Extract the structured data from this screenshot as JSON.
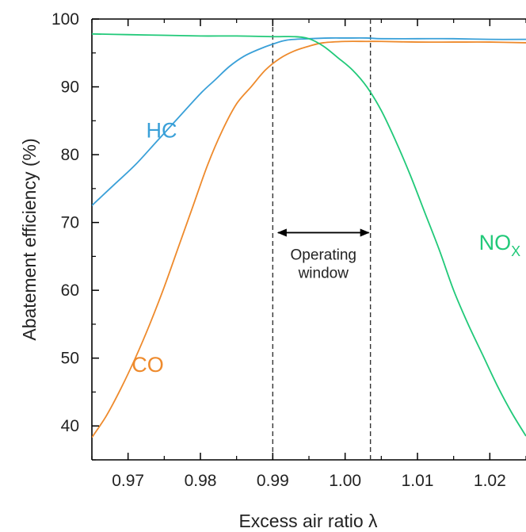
{
  "chart_data": {
    "type": "line",
    "title": "",
    "xlabel": "Excess air ratio λ",
    "ylabel": "Abatement efficiency (%)",
    "xlim": [
      0.965,
      1.025
    ],
    "ylim": [
      35,
      100
    ],
    "x_ticks": [
      0.97,
      0.98,
      0.99,
      1.0,
      1.01,
      1.02
    ],
    "x_tick_labels": [
      "0.97",
      "0.98",
      "0.99",
      "1.00",
      "1.01",
      "1.02"
    ],
    "y_ticks": [
      40,
      50,
      60,
      70,
      80,
      90,
      100
    ],
    "y_tick_labels": [
      "40",
      "50",
      "60",
      "70",
      "80",
      "90",
      "100"
    ],
    "grid": false,
    "series": [
      {
        "name": "HC",
        "color": "#3AA0D8",
        "label_position": {
          "x": 0.9725,
          "y": 82.5
        },
        "x": [
          0.965,
          0.968,
          0.971,
          0.974,
          0.977,
          0.98,
          0.982,
          0.984,
          0.986,
          0.988,
          0.99,
          0.992,
          0.995,
          0.998,
          1.0,
          1.003,
          1.005,
          1.01,
          1.015,
          1.02,
          1.025
        ],
        "y": [
          72.5,
          75.5,
          78.5,
          82.0,
          85.5,
          89.0,
          91.0,
          93.0,
          94.5,
          95.5,
          96.3,
          96.9,
          97.1,
          97.2,
          97.2,
          97.2,
          97.1,
          97.1,
          97.1,
          97.0,
          97.0
        ]
      },
      {
        "name": "CO",
        "color": "#EE8A2C",
        "label_position": {
          "x": 0.9705,
          "y": 48.0
        },
        "x": [
          0.965,
          0.967,
          0.969,
          0.971,
          0.973,
          0.975,
          0.977,
          0.979,
          0.981,
          0.983,
          0.985,
          0.987,
          0.989,
          0.991,
          0.993,
          0.995,
          0.997,
          1.0,
          1.003,
          1.005,
          1.01,
          1.015,
          1.02,
          1.025
        ],
        "y": [
          38.3,
          41.5,
          45.5,
          50.0,
          55.0,
          60.5,
          66.5,
          72.5,
          78.5,
          83.5,
          87.5,
          90.0,
          92.5,
          94.2,
          95.3,
          96.0,
          96.5,
          96.7,
          96.7,
          96.7,
          96.6,
          96.6,
          96.6,
          96.5
        ]
      },
      {
        "name": "NO",
        "name_subscript": "X",
        "color": "#21C979",
        "label_position": {
          "x": 1.0185,
          "y": 66.0
        },
        "x": [
          0.965,
          0.97,
          0.975,
          0.98,
          0.985,
          0.99,
          0.993,
          0.995,
          0.997,
          0.999,
          1.001,
          1.003,
          1.005,
          1.007,
          1.009,
          1.011,
          1.013,
          1.015,
          1.017,
          1.019,
          1.021,
          1.023,
          1.025
        ],
        "y": [
          97.8,
          97.7,
          97.6,
          97.5,
          97.5,
          97.4,
          97.4,
          97.1,
          96.0,
          94.3,
          92.5,
          90.0,
          86.5,
          82.0,
          77.0,
          71.5,
          66.0,
          60.0,
          55.0,
          50.5,
          46.0,
          42.0,
          38.5
        ]
      }
    ],
    "vertical_lines": [
      {
        "x": 0.99,
        "style": "dashed"
      },
      {
        "x": 1.0035,
        "style": "dashed"
      }
    ],
    "annotations": [
      {
        "type": "double-arrow",
        "x_start": 0.9905,
        "x_end": 1.0035,
        "y": 68.5,
        "text_line1": "Operating",
        "text_line2": "window"
      }
    ]
  }
}
